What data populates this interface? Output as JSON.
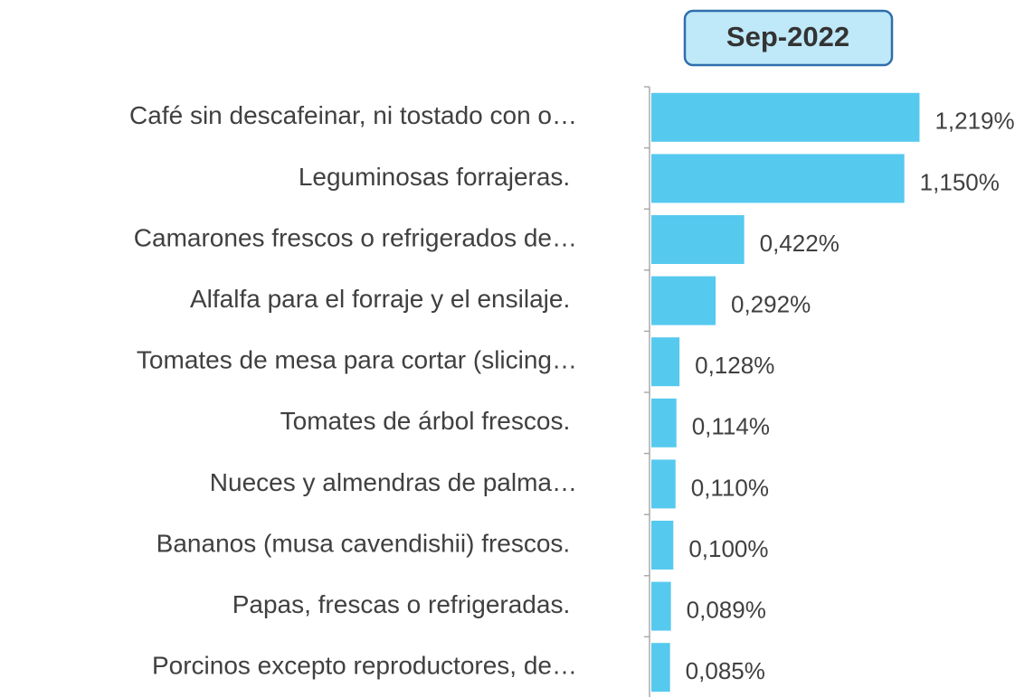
{
  "chart_data": {
    "type": "bar",
    "orientation": "horizontal",
    "title": "Sep-2022",
    "categories": [
      "Café sin descafeinar, ni tostado con o…",
      "Leguminosas forrajeras. ",
      "Camarones frescos o refrigerados de…",
      "Alfalfa para el forraje y el ensilaje. ",
      "Tomates de mesa para cortar (slicing…",
      "Tomates de árbol frescos. ",
      "Nueces y almendras de palma…",
      "Bananos (musa cavendishii) frescos. ",
      "Papas, frescas o refrigeradas. ",
      "Porcinos excepto reproductores, de…"
    ],
    "values": [
      1.219,
      1.15,
      0.422,
      0.292,
      0.128,
      0.114,
      0.11,
      0.1,
      0.089,
      0.085
    ],
    "value_labels": [
      "1,219%",
      "1,150%",
      "0,422%",
      "0,292%",
      "0,128%",
      "0,114%",
      "0,110%",
      "0,100%",
      "0,089%",
      "0,085%"
    ],
    "color": "#56c9ef",
    "xlim": [
      0,
      1.25
    ]
  }
}
